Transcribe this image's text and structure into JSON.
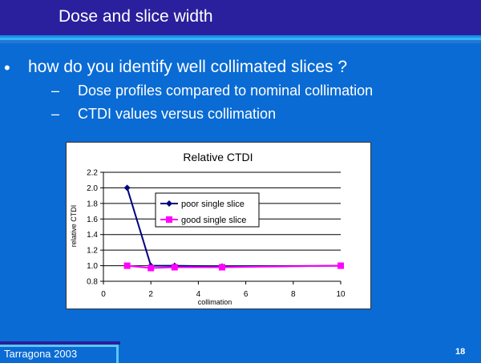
{
  "slide": {
    "title": "Dose and slice width",
    "bullet": "how do you identify well collimated slices ?",
    "bullet_symbol": "•",
    "sub_dash": "–",
    "sub_items": [
      "Dose profiles compared to nominal collimation",
      "CTDI values versus collimation"
    ],
    "footer": "Tarragona 2003",
    "page_number": "18"
  },
  "colors": {
    "background": "#0a6bd4",
    "title_bar": "#2a1f9c",
    "series_poor": "#000080",
    "series_good": "#ff00ff"
  },
  "chart_data": {
    "type": "line",
    "title": "Relative CTDI",
    "xlabel": "collimation",
    "ylabel": "relative CTDI",
    "xlim": [
      0,
      10
    ],
    "ylim": [
      0.8,
      2.2
    ],
    "x_ticks": [
      0,
      2,
      4,
      6,
      8,
      10
    ],
    "y_ticks": [
      "0.8",
      "1.0",
      "1.2",
      "1.4",
      "1.6",
      "1.8",
      "2.0",
      "2.2"
    ],
    "grid": "horizontal",
    "legend_position": "inside-center",
    "series": [
      {
        "name": "poor single slice",
        "marker": "diamond",
        "x": [
          1,
          2,
          3,
          5,
          10
        ],
        "y": [
          2.0,
          1.0,
          1.0,
          0.99,
          1.0
        ]
      },
      {
        "name": "good single slice",
        "marker": "square",
        "x": [
          1,
          2,
          3,
          5,
          10
        ],
        "y": [
          1.0,
          0.97,
          0.98,
          0.98,
          1.0
        ]
      }
    ]
  }
}
